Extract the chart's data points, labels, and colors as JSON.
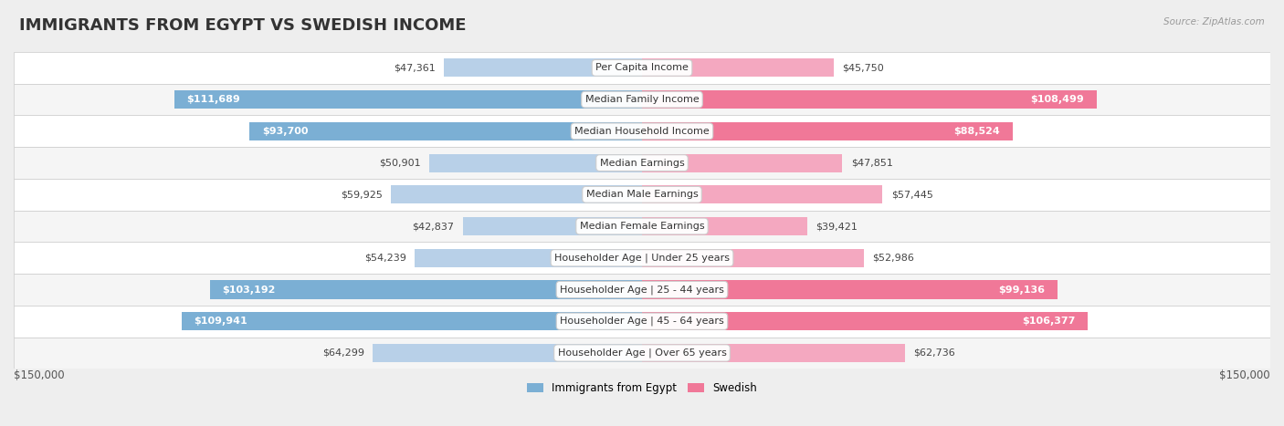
{
  "title": "IMMIGRANTS FROM EGYPT VS SWEDISH INCOME",
  "source": "Source: ZipAtlas.com",
  "categories": [
    "Per Capita Income",
    "Median Family Income",
    "Median Household Income",
    "Median Earnings",
    "Median Male Earnings",
    "Median Female Earnings",
    "Householder Age | Under 25 years",
    "Householder Age | 25 - 44 years",
    "Householder Age | 45 - 64 years",
    "Householder Age | Over 65 years"
  ],
  "egypt_values": [
    47361,
    111689,
    93700,
    50901,
    59925,
    42837,
    54239,
    103192,
    109941,
    64299
  ],
  "swedish_values": [
    45750,
    108499,
    88524,
    47851,
    57445,
    39421,
    52986,
    99136,
    106377,
    62736
  ],
  "egypt_color_light": "#b8d0e8",
  "egypt_color_dark": "#7bafd4",
  "swedish_color_light": "#f4a8c0",
  "swedish_color_dark": "#f07898",
  "egypt_label": "Immigrants from Egypt",
  "swedish_label": "Swedish",
  "max_value": 150000,
  "x_tick_label_left": "$150,000",
  "x_tick_label_right": "$150,000",
  "background_color": "#eeeeee",
  "row_bg_even": "#ffffff",
  "row_bg_odd": "#f5f5f5",
  "title_fontsize": 13,
  "value_fontsize": 8,
  "category_fontsize": 8,
  "large_threshold": 70000
}
